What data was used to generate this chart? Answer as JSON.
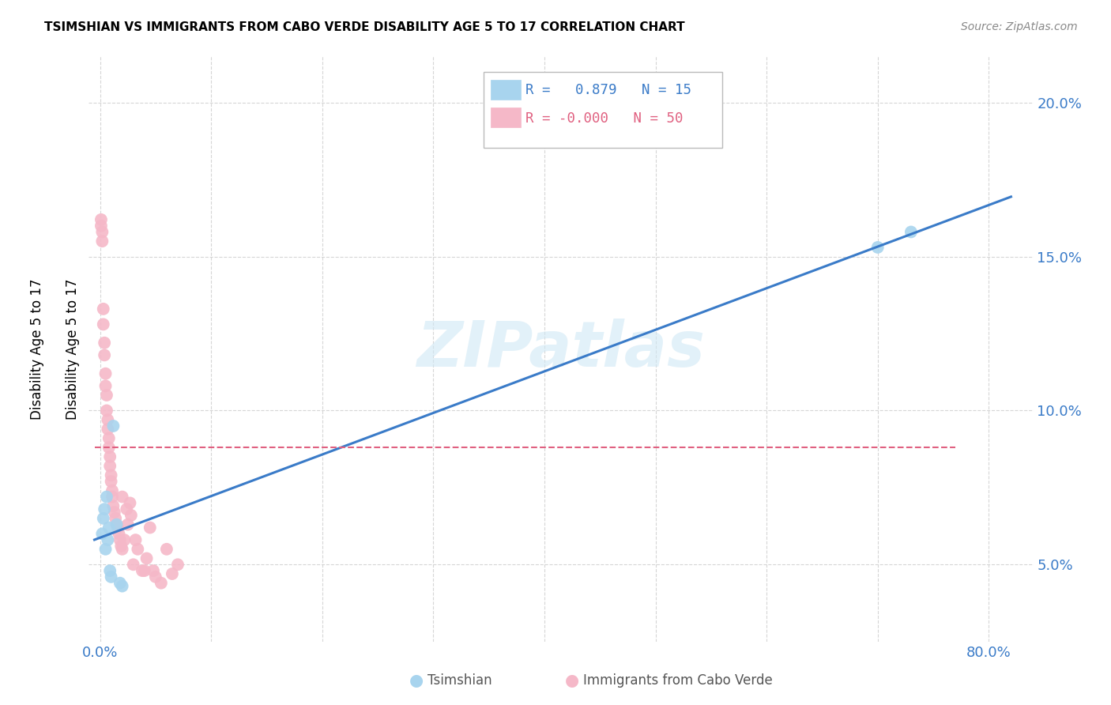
{
  "title": "TSIMSHIAN VS IMMIGRANTS FROM CABO VERDE DISABILITY AGE 5 TO 17 CORRELATION CHART",
  "source": "Source: ZipAtlas.com",
  "ylabel": "Disability Age 5 to 17",
  "legend_label_blue": "Tsimshian",
  "legend_label_pink": "Immigrants from Cabo Verde",
  "r_blue": "0.879",
  "n_blue": "15",
  "r_pink": "-0.000",
  "n_pink": "50",
  "blue_scatter_color": "#a8d4ee",
  "pink_scatter_color": "#f5b8c8",
  "blue_line_color": "#3a7bc8",
  "pink_line_color": "#e06080",
  "watermark": "ZIPatlas",
  "tsimshian_x": [
    0.002,
    0.003,
    0.004,
    0.005,
    0.006,
    0.007,
    0.008,
    0.009,
    0.01,
    0.012,
    0.015,
    0.018,
    0.02,
    0.7,
    0.73
  ],
  "tsimshian_y": [
    0.06,
    0.065,
    0.068,
    0.055,
    0.072,
    0.058,
    0.062,
    0.048,
    0.046,
    0.095,
    0.063,
    0.044,
    0.043,
    0.153,
    0.158
  ],
  "cabo_verde_x": [
    0.001,
    0.001,
    0.002,
    0.002,
    0.003,
    0.003,
    0.004,
    0.004,
    0.005,
    0.005,
    0.006,
    0.006,
    0.007,
    0.007,
    0.008,
    0.008,
    0.009,
    0.009,
    0.01,
    0.01,
    0.011,
    0.011,
    0.012,
    0.013,
    0.014,
    0.015,
    0.016,
    0.017,
    0.018,
    0.019,
    0.02,
    0.02,
    0.022,
    0.024,
    0.025,
    0.027,
    0.028,
    0.03,
    0.032,
    0.034,
    0.038,
    0.04,
    0.042,
    0.045,
    0.048,
    0.05,
    0.055,
    0.06,
    0.065,
    0.07
  ],
  "cabo_verde_y": [
    0.162,
    0.16,
    0.158,
    0.155,
    0.133,
    0.128,
    0.122,
    0.118,
    0.112,
    0.108,
    0.105,
    0.1,
    0.097,
    0.094,
    0.091,
    0.088,
    0.085,
    0.082,
    0.079,
    0.077,
    0.074,
    0.072,
    0.069,
    0.067,
    0.065,
    0.063,
    0.062,
    0.06,
    0.058,
    0.056,
    0.055,
    0.072,
    0.058,
    0.068,
    0.063,
    0.07,
    0.066,
    0.05,
    0.058,
    0.055,
    0.048,
    0.048,
    0.052,
    0.062,
    0.048,
    0.046,
    0.044,
    0.055,
    0.047,
    0.05
  ],
  "pink_line_y": 0.088,
  "xlim": [
    -0.01,
    0.84
  ],
  "ylim": [
    0.025,
    0.215
  ],
  "x_ticks": [
    0.0,
    0.1,
    0.2,
    0.3,
    0.4,
    0.5,
    0.6,
    0.7,
    0.8
  ],
  "x_tick_labels": [
    "0.0%",
    "",
    "",
    "",
    "",
    "",
    "",
    "",
    "80.0%"
  ],
  "y_ticks": [
    0.05,
    0.1,
    0.15,
    0.2
  ],
  "y_tick_labels": [
    "5.0%",
    "10.0%",
    "15.0%",
    "20.0%"
  ]
}
